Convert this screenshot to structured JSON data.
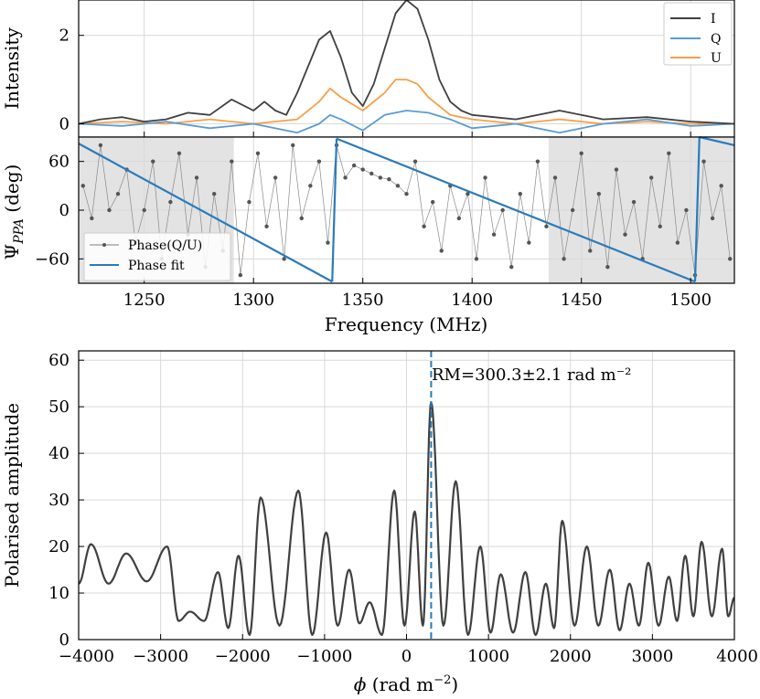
{
  "colors": {
    "I": "#404040",
    "Q": "#5a9bd5",
    "U": "#f5a04a",
    "fit": "#2b7bba",
    "phase": "#555555",
    "shade": "#e3e3e3",
    "rm_line": "#2b7bba"
  },
  "chart_data": [
    {
      "id": "intensity",
      "type": "line",
      "ylabel": "Intensity",
      "xlim": [
        1220,
        1520
      ],
      "ylim": [
        -0.3,
        2.8
      ],
      "yticks": [
        0,
        2
      ],
      "ytick_labels": [
        "0",
        "2"
      ],
      "grid": true,
      "legend": "top-right",
      "series": [
        {
          "name": "I",
          "x": [
            1220,
            1230,
            1240,
            1250,
            1260,
            1270,
            1280,
            1290,
            1300,
            1305,
            1310,
            1315,
            1320,
            1325,
            1330,
            1335,
            1340,
            1345,
            1350,
            1355,
            1360,
            1365,
            1370,
            1375,
            1380,
            1385,
            1390,
            1395,
            1400,
            1410,
            1420,
            1440,
            1460,
            1480,
            1500,
            1520
          ],
          "y": [
            0.0,
            0.1,
            0.15,
            0.05,
            0.1,
            0.25,
            0.2,
            0.55,
            0.3,
            0.5,
            0.3,
            0.2,
            0.7,
            1.3,
            1.9,
            2.1,
            1.5,
            0.7,
            0.4,
            0.9,
            1.7,
            2.5,
            2.8,
            2.6,
            1.9,
            1.0,
            0.5,
            0.3,
            0.2,
            0.15,
            0.1,
            0.3,
            0.1,
            0.15,
            0.05,
            0.0
          ]
        },
        {
          "name": "Q",
          "x": [
            1220,
            1240,
            1260,
            1280,
            1300,
            1320,
            1330,
            1335,
            1340,
            1350,
            1360,
            1370,
            1380,
            1390,
            1400,
            1420,
            1440,
            1460,
            1480,
            1500,
            1520
          ],
          "y": [
            0.0,
            -0.05,
            0.05,
            -0.1,
            0.0,
            -0.2,
            0.0,
            0.2,
            0.1,
            -0.15,
            0.2,
            0.3,
            0.25,
            0.1,
            -0.1,
            0.0,
            -0.2,
            0.0,
            0.1,
            -0.05,
            0.0
          ]
        },
        {
          "name": "U",
          "x": [
            1220,
            1240,
            1260,
            1280,
            1300,
            1320,
            1330,
            1335,
            1340,
            1350,
            1360,
            1365,
            1370,
            1375,
            1380,
            1390,
            1400,
            1420,
            1440,
            1460,
            1480,
            1500,
            1520
          ],
          "y": [
            0.0,
            0.05,
            0.0,
            0.1,
            0.0,
            0.1,
            0.5,
            0.8,
            0.6,
            0.3,
            0.7,
            1.0,
            1.0,
            0.9,
            0.6,
            0.2,
            0.1,
            0.0,
            0.1,
            0.0,
            0.05,
            0.0,
            0.0
          ]
        }
      ]
    },
    {
      "id": "phase",
      "type": "scatter",
      "ylabel": "Ψ_PPA (deg)",
      "xlabel": "Frequency (MHz)",
      "xlim": [
        1220,
        1520
      ],
      "ylim": [
        -90,
        90
      ],
      "xticks": [
        1250,
        1300,
        1350,
        1400,
        1450,
        1500
      ],
      "xtick_labels": [
        "1250",
        "1300",
        "1350",
        "1400",
        "1450",
        "1500"
      ],
      "yticks": [
        -60,
        0,
        60
      ],
      "ytick_labels": [
        "−60",
        "0",
        "60"
      ],
      "grid": true,
      "legend": "bottom-left",
      "shaded_ranges": [
        [
          1220,
          1291
        ],
        [
          1435,
          1520
        ]
      ],
      "series": [
        {
          "name": "Phase(Q/U)",
          "x": [
            1222,
            1226,
            1230,
            1234,
            1238,
            1242,
            1246,
            1250,
            1254,
            1258,
            1262,
            1266,
            1270,
            1274,
            1278,
            1282,
            1286,
            1290,
            1294,
            1298,
            1302,
            1306,
            1310,
            1314,
            1318,
            1322,
            1326,
            1330,
            1334,
            1338,
            1342,
            1346,
            1350,
            1354,
            1358,
            1362,
            1366,
            1370,
            1374,
            1378,
            1382,
            1386,
            1390,
            1394,
            1398,
            1402,
            1406,
            1410,
            1414,
            1418,
            1422,
            1426,
            1430,
            1434,
            1438,
            1442,
            1446,
            1450,
            1454,
            1458,
            1462,
            1466,
            1470,
            1474,
            1478,
            1482,
            1486,
            1490,
            1494,
            1498,
            1502,
            1506,
            1510,
            1514,
            1518
          ],
          "y": [
            30,
            -10,
            80,
            0,
            20,
            50,
            -40,
            0,
            60,
            -60,
            10,
            70,
            -30,
            40,
            -70,
            20,
            -50,
            60,
            -80,
            10,
            70,
            -20,
            40,
            -60,
            80,
            -10,
            30,
            60,
            -40,
            80,
            40,
            55,
            50,
            45,
            40,
            38,
            30,
            20,
            60,
            -20,
            10,
            -50,
            30,
            -10,
            20,
            -60,
            40,
            -30,
            0,
            -70,
            20,
            -40,
            60,
            -20,
            40,
            -60,
            0,
            70,
            -50,
            20,
            -70,
            50,
            -30,
            10,
            -60,
            40,
            -20,
            70,
            -40,
            0,
            -80,
            60,
            -10,
            30,
            -60
          ]
        }
      ],
      "fit": {
        "name": "Phase fit",
        "segments": [
          [
            [
              1220,
              82
            ],
            [
              1336,
              -88
            ]
          ],
          [
            [
              1336,
              -88
            ],
            [
              1338,
              88
            ]
          ],
          [
            [
              1338,
              88
            ],
            [
              1502,
              -88
            ]
          ],
          [
            [
              1502,
              -88
            ],
            [
              1504,
              90
            ]
          ],
          [
            [
              1504,
              90
            ],
            [
              1520,
              80
            ]
          ]
        ]
      }
    },
    {
      "id": "rm-spectrum",
      "type": "line",
      "ylabel": "Polarised amplitude",
      "xlabel": "ϕ (rad m⁻²)",
      "xlim": [
        -4000,
        4000
      ],
      "ylim": [
        0,
        62
      ],
      "xticks": [
        -4000,
        -3000,
        -2000,
        -1000,
        0,
        1000,
        2000,
        3000,
        4000
      ],
      "xtick_labels": [
        "−4000",
        "−3000",
        "−2000",
        "−1000",
        "0",
        "1000",
        "2000",
        "3000",
        "4000"
      ],
      "yticks": [
        0,
        10,
        20,
        30,
        40,
        50,
        60
      ],
      "ytick_labels": [
        "0",
        "10",
        "20",
        "30",
        "40",
        "50",
        "60"
      ],
      "grid": true,
      "rm_value": 300.3,
      "annotation": "RM=300.3±2.1 rad m⁻²",
      "peaks": [
        [
          -3850,
          20.5
        ],
        [
          -3420,
          18.5
        ],
        [
          -2920,
          20.0
        ],
        [
          -2640,
          6.0
        ],
        [
          -2300,
          14.5
        ],
        [
          -2050,
          18.0
        ],
        [
          -1780,
          30.5
        ],
        [
          -1320,
          32.0
        ],
        [
          -980,
          23.0
        ],
        [
          -700,
          15.0
        ],
        [
          -450,
          8.0
        ],
        [
          -150,
          32.0
        ],
        [
          100,
          27.5
        ],
        [
          300,
          51.0
        ],
        [
          600,
          34.0
        ],
        [
          900,
          20.0
        ],
        [
          1150,
          14.0
        ],
        [
          1450,
          14.5
        ],
        [
          1700,
          12.0
        ],
        [
          1900,
          25.5
        ],
        [
          2200,
          20.0
        ],
        [
          2480,
          15.0
        ],
        [
          2720,
          12.0
        ],
        [
          2950,
          16.5
        ],
        [
          3200,
          13.5
        ],
        [
          3400,
          18.0
        ],
        [
          3600,
          21.0
        ],
        [
          3850,
          19.5
        ],
        [
          4000,
          9.0
        ]
      ]
    }
  ]
}
